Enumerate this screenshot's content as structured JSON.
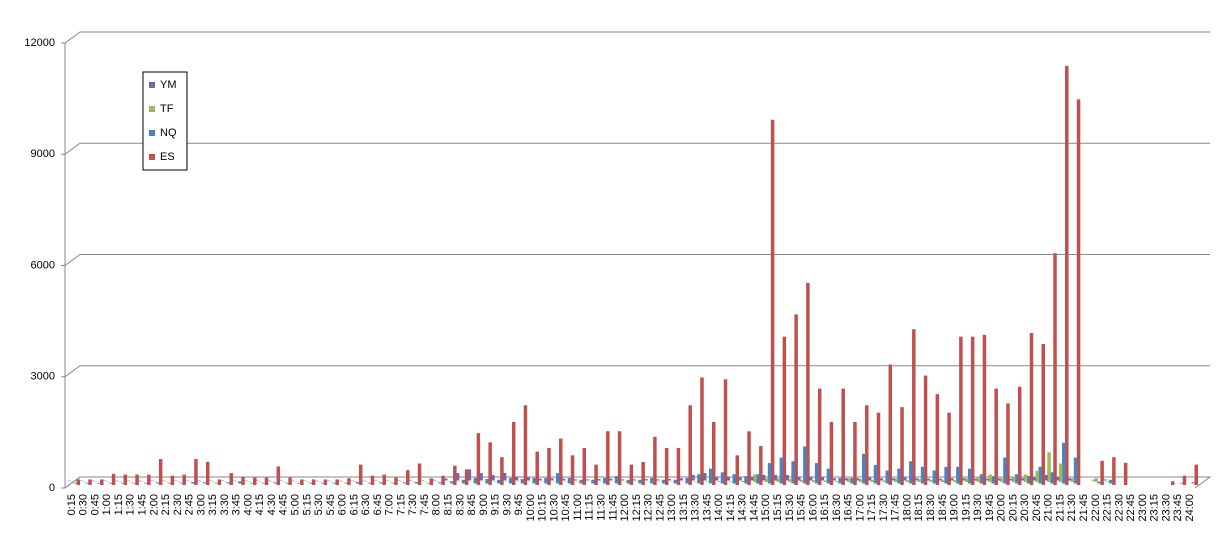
{
  "chart_data": {
    "type": "bar",
    "categories": [
      "0:15",
      "0:30",
      "0:45",
      "1:00",
      "1:15",
      "1:30",
      "1:45",
      "2:00",
      "2:15",
      "2:30",
      "2:45",
      "3:00",
      "3:15",
      "3:30",
      "3:45",
      "4:00",
      "4:15",
      "4:30",
      "4:45",
      "5:00",
      "5:15",
      "5:30",
      "5:45",
      "6:00",
      "6:15",
      "6:30",
      "6:45",
      "7:00",
      "7:15",
      "7:30",
      "7:45",
      "8:00",
      "8:15",
      "8:30",
      "8:45",
      "9:00",
      "9:15",
      "9:30",
      "9:45",
      "10:00",
      "10:15",
      "10:30",
      "10:45",
      "11:00",
      "11:15",
      "11:30",
      "11:45",
      "12:00",
      "12:15",
      "12:30",
      "12:45",
      "13:00",
      "13:15",
      "13:30",
      "13:45",
      "14:00",
      "14:15",
      "14:30",
      "14:45",
      "15:00",
      "15:15",
      "15:30",
      "15:45",
      "16:00",
      "16:15",
      "16:30",
      "16:45",
      "17:00",
      "17:15",
      "17:30",
      "17:45",
      "18:00",
      "18:15",
      "18:30",
      "18:45",
      "19:00",
      "19:15",
      "19:30",
      "19:45",
      "20:00",
      "20:15",
      "20:30",
      "20:45",
      "21:00",
      "21:15",
      "21:30",
      "21:45",
      "22:00",
      "22:15",
      "22:30",
      "22:45",
      "23:00",
      "23:15",
      "23:30",
      "23:45",
      "24:00"
    ],
    "series": [
      {
        "name": "YM",
        "color": "#8064a2",
        "values": [
          10,
          10,
          10,
          10,
          10,
          10,
          10,
          10,
          10,
          10,
          10,
          10,
          10,
          10,
          10,
          10,
          10,
          10,
          10,
          10,
          10,
          10,
          10,
          10,
          10,
          10,
          10,
          10,
          10,
          10,
          10,
          20,
          50,
          200,
          300,
          200,
          150,
          200,
          100,
          80,
          50,
          60,
          50,
          30,
          30,
          40,
          50,
          30,
          30,
          40,
          30,
          40,
          60,
          150,
          200,
          100,
          100,
          80,
          100,
          150,
          150,
          150,
          100,
          100,
          80,
          60,
          60,
          60,
          80,
          60,
          60,
          80,
          60,
          50,
          50,
          60,
          60,
          50,
          50,
          60,
          50,
          60,
          80,
          150,
          100,
          60,
          0,
          20,
          30,
          0,
          0,
          0,
          0,
          0,
          0,
          0
        ]
      },
      {
        "name": "TF",
        "color": "#9bbb59",
        "values": [
          10,
          10,
          10,
          10,
          10,
          10,
          10,
          10,
          10,
          10,
          10,
          10,
          10,
          10,
          10,
          10,
          10,
          10,
          10,
          10,
          10,
          10,
          10,
          10,
          10,
          10,
          10,
          10,
          10,
          10,
          10,
          10,
          10,
          10,
          10,
          10,
          10,
          10,
          10,
          10,
          10,
          10,
          10,
          10,
          10,
          10,
          10,
          10,
          10,
          10,
          10,
          10,
          10,
          10,
          20,
          20,
          20,
          30,
          200,
          100,
          100,
          80,
          60,
          50,
          40,
          30,
          100,
          80,
          60,
          40,
          100,
          60,
          80,
          60,
          60,
          50,
          100,
          150,
          200,
          100,
          150,
          200,
          300,
          800,
          500,
          100,
          0,
          100,
          20,
          0,
          0,
          0,
          0,
          0,
          0,
          0
        ]
      },
      {
        "name": "NQ",
        "color": "#4f81bd",
        "values": [
          20,
          20,
          20,
          20,
          20,
          20,
          20,
          30,
          20,
          20,
          40,
          30,
          20,
          30,
          60,
          20,
          20,
          30,
          20,
          20,
          20,
          20,
          20,
          20,
          40,
          20,
          30,
          20,
          30,
          40,
          20,
          30,
          60,
          100,
          150,
          120,
          100,
          150,
          120,
          150,
          150,
          280,
          150,
          100,
          100,
          150,
          200,
          100,
          100,
          150,
          100,
          100,
          150,
          250,
          400,
          300,
          250,
          200,
          250,
          550,
          700,
          600,
          1000,
          550,
          400,
          150,
          150,
          800,
          500,
          350,
          400,
          600,
          450,
          350,
          450,
          450,
          400,
          250,
          200,
          700,
          250,
          200,
          450,
          300,
          1100,
          700,
          0,
          50,
          100,
          0,
          0,
          0,
          0,
          0,
          20,
          30
        ]
      },
      {
        "name": "ES",
        "color": "#c0504d",
        "values": [
          150,
          150,
          150,
          300,
          280,
          280,
          280,
          700,
          250,
          280,
          700,
          620,
          150,
          320,
          220,
          200,
          200,
          500,
          200,
          150,
          150,
          150,
          150,
          180,
          550,
          250,
          280,
          200,
          400,
          580,
          180,
          250,
          520,
          420,
          1400,
          1150,
          750,
          1700,
          2150,
          900,
          1000,
          1250,
          800,
          1000,
          550,
          1450,
          1450,
          550,
          620,
          1300,
          1000,
          1000,
          2150,
          2900,
          1700,
          2850,
          800,
          1450,
          1050,
          9850,
          4000,
          4600,
          5450,
          2600,
          1700,
          2600,
          1700,
          2150,
          1950,
          3250,
          2100,
          4200,
          2950,
          2450,
          1950,
          4000,
          4000,
          4050,
          2600,
          2200,
          2650,
          4100,
          3800,
          6250,
          11300,
          10400,
          0,
          650,
          750,
          600,
          0,
          0,
          0,
          100,
          250,
          550
        ]
      }
    ],
    "ylim": [
      0,
      12000
    ],
    "yticks": [
      0,
      3000,
      6000,
      9000,
      12000
    ],
    "grid": true
  }
}
